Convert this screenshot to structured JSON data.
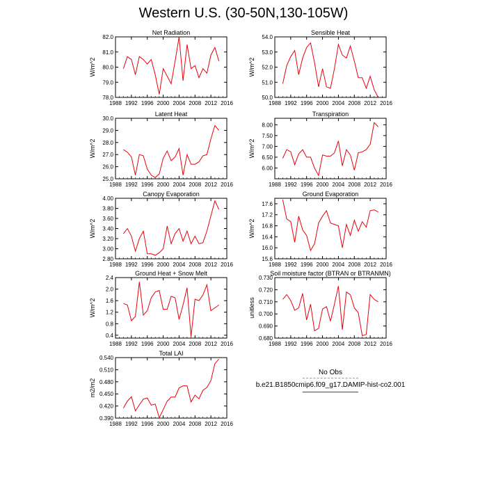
{
  "page_title": "Western U.S. (30-50N,130-105W)",
  "legend": {
    "obs_label": "No Obs",
    "model_label": "b.e21.B1850cmip6.f09_g17.DAMIP-hist-co2.001",
    "obs_color": "#9a9aa8",
    "model_color": "#e8000b"
  },
  "chart_data": [
    {
      "type": "line",
      "title": "Net Radiation",
      "ylabel": "W/m^2",
      "xlim": [
        1988,
        2016
      ],
      "xticks": [
        1988,
        1992,
        1996,
        2000,
        2004,
        2008,
        2012,
        2016
      ],
      "ylim": [
        78.0,
        82.0
      ],
      "yticks": [
        "78.0",
        "79.0",
        "80.0",
        "81.0",
        "82.0"
      ],
      "series": [
        {
          "color": "#e8000b",
          "x": [
            1990,
            1991,
            1992,
            1993,
            1994,
            1995,
            1996,
            1997,
            1998,
            1999,
            2000,
            2001,
            2002,
            2003,
            2004,
            2005,
            2006,
            2007,
            2008,
            2009,
            2010,
            2011,
            2012,
            2013,
            2014
          ],
          "values": [
            79.9,
            80.7,
            80.5,
            79.5,
            80.7,
            80.5,
            80.2,
            80.5,
            79.5,
            78.2,
            79.9,
            79.4,
            78.9,
            80.4,
            82.0,
            79.1,
            81.5,
            79.9,
            80.1,
            79.3,
            79.9,
            79.6,
            80.8,
            81.3,
            80.4
          ]
        }
      ]
    },
    {
      "type": "line",
      "title": "Sensible Heat",
      "ylabel": "W/m^2",
      "xlim": [
        1988,
        2016
      ],
      "xticks": [
        1988,
        1992,
        1996,
        2000,
        2004,
        2008,
        2012,
        2016
      ],
      "ylim": [
        50.0,
        54.0
      ],
      "yticks": [
        "50.0",
        "51.0",
        "52.0",
        "53.0",
        "54.0"
      ],
      "series": [
        {
          "color": "#e8000b",
          "x": [
            1990,
            1991,
            1992,
            1993,
            1994,
            1995,
            1996,
            1997,
            1998,
            1999,
            2000,
            2001,
            2002,
            2003,
            2004,
            2005,
            2006,
            2007,
            2008,
            2009,
            2010,
            2011,
            2012,
            2013,
            2014
          ],
          "values": [
            50.9,
            52.1,
            52.7,
            53.1,
            51.5,
            52.6,
            53.3,
            53.6,
            52.3,
            50.7,
            51.9,
            50.7,
            50.6,
            51.9,
            53.5,
            52.8,
            52.6,
            53.4,
            52.4,
            51.3,
            51.3,
            50.6,
            51.4,
            50.5,
            50.0
          ]
        }
      ]
    },
    {
      "type": "line",
      "title": "Latent Heat",
      "ylabel": "W/m^2",
      "xlim": [
        1988,
        2016
      ],
      "xticks": [
        1988,
        1992,
        1996,
        2000,
        2004,
        2008,
        2012,
        2016
      ],
      "ylim": [
        25.0,
        30.0
      ],
      "yticks": [
        "25.0",
        "26.0",
        "27.0",
        "28.0",
        "29.0",
        "30.0"
      ],
      "series": [
        {
          "color": "#e8000b",
          "x": [
            1990,
            1991,
            1992,
            1993,
            1994,
            1995,
            1996,
            1997,
            1998,
            1999,
            2000,
            2001,
            2002,
            2003,
            2004,
            2005,
            2006,
            2007,
            2008,
            2009,
            2010,
            2011,
            2012,
            2013,
            2014
          ],
          "values": [
            27.4,
            27.2,
            26.8,
            25.3,
            27.0,
            26.9,
            25.8,
            25.3,
            25.1,
            25.4,
            26.7,
            27.3,
            26.5,
            26.8,
            27.5,
            25.3,
            27.0,
            26.2,
            26.2,
            26.4,
            26.9,
            27.0,
            28.3,
            29.4,
            29.0
          ]
        }
      ]
    },
    {
      "type": "line",
      "title": "Transpiration",
      "ylabel": "W/m^2",
      "xlim": [
        1988,
        2016
      ],
      "xticks": [
        1988,
        1992,
        1996,
        2000,
        2004,
        2008,
        2012,
        2016
      ],
      "ylim": [
        5.5,
        8.3
      ],
      "yticks": [
        "6.00",
        "6.50",
        "7.00",
        "7.50",
        "8.00"
      ],
      "ytick_values": [
        6.0,
        6.5,
        7.0,
        7.5,
        8.0
      ],
      "series": [
        {
          "color": "#e8000b",
          "x": [
            1990,
            1991,
            1992,
            1993,
            1994,
            1995,
            1996,
            1997,
            1998,
            1999,
            2000,
            2001,
            2002,
            2003,
            2004,
            2005,
            2006,
            2007,
            2008,
            2009,
            2010,
            2011,
            2012,
            2013,
            2014
          ],
          "values": [
            6.45,
            6.85,
            6.75,
            6.15,
            6.65,
            6.85,
            6.5,
            6.5,
            6.0,
            5.65,
            6.6,
            6.55,
            6.55,
            6.7,
            7.25,
            6.1,
            6.85,
            6.6,
            5.9,
            6.7,
            6.75,
            6.85,
            7.1,
            8.1,
            7.9
          ]
        }
      ]
    },
    {
      "type": "line",
      "title": "Canopy Evaporation",
      "ylabel": "W/m^2",
      "xlim": [
        1988,
        2016
      ],
      "xticks": [
        1988,
        1992,
        1996,
        2000,
        2004,
        2008,
        2012,
        2016
      ],
      "ylim": [
        2.8,
        4.0
      ],
      "yticks": [
        "2.80",
        "3.00",
        "3.20",
        "3.40",
        "3.60",
        "3.80",
        "4.00"
      ],
      "series": [
        {
          "color": "#e8000b",
          "x": [
            1990,
            1991,
            1992,
            1993,
            1994,
            1995,
            1996,
            1997,
            1998,
            1999,
            2000,
            2001,
            2002,
            2003,
            2004,
            2005,
            2006,
            2007,
            2008,
            2009,
            2010,
            2011,
            2012,
            2013,
            2014
          ],
          "values": [
            3.3,
            3.4,
            3.25,
            2.95,
            3.2,
            3.35,
            2.9,
            2.9,
            2.87,
            2.92,
            3.0,
            3.45,
            3.1,
            3.3,
            3.4,
            3.15,
            3.35,
            3.1,
            3.25,
            3.1,
            3.12,
            3.35,
            3.65,
            3.95,
            3.78
          ]
        }
      ]
    },
    {
      "type": "line",
      "title": "Ground Evaporation",
      "ylabel": "W/m^2",
      "xlim": [
        1988,
        2016
      ],
      "xticks": [
        1988,
        1992,
        1996,
        2000,
        2004,
        2008,
        2012,
        2016
      ],
      "ylim": [
        15.6,
        17.8
      ],
      "yticks": [
        "15.6",
        "16.0",
        "16.4",
        "16.8",
        "17.2",
        "17.6"
      ],
      "ytick_values": [
        15.6,
        16.0,
        16.4,
        16.8,
        17.2,
        17.6
      ],
      "series": [
        {
          "color": "#e8000b",
          "x": [
            1990,
            1991,
            1992,
            1993,
            1994,
            1995,
            1996,
            1997,
            1998,
            1999,
            2000,
            2001,
            2002,
            2003,
            2004,
            2005,
            2006,
            2007,
            2008,
            2009,
            2010,
            2011,
            2012,
            2013,
            2014
          ],
          "values": [
            17.75,
            17.05,
            16.95,
            16.2,
            17.15,
            16.65,
            16.45,
            15.9,
            16.15,
            16.9,
            17.15,
            17.35,
            16.9,
            16.85,
            16.8,
            16.0,
            16.85,
            16.45,
            17.0,
            16.6,
            16.95,
            16.75,
            17.35,
            17.38,
            17.3
          ]
        }
      ]
    },
    {
      "type": "line",
      "title": "Ground Heat + Snow Melt",
      "ylabel": "W/m^2",
      "xlim": [
        1988,
        2016
      ],
      "xticks": [
        1988,
        1992,
        1996,
        2000,
        2004,
        2008,
        2012,
        2016
      ],
      "ylim": [
        0.3,
        2.4
      ],
      "yticks": [
        "0.4",
        "0.8",
        "1.2",
        "1.6",
        "2.0",
        "2.4"
      ],
      "ytick_values": [
        0.4,
        0.8,
        1.2,
        1.6,
        2.0,
        2.4
      ],
      "series": [
        {
          "color": "#e8000b",
          "x": [
            1990,
            1991,
            1992,
            1993,
            1994,
            1995,
            1996,
            1997,
            1998,
            1999,
            2000,
            2001,
            2002,
            2003,
            2004,
            2005,
            2006,
            2007,
            2008,
            2009,
            2010,
            2011,
            2012,
            2013,
            2014
          ],
          "values": [
            1.5,
            1.45,
            0.9,
            1.05,
            2.25,
            1.1,
            1.25,
            1.7,
            1.9,
            1.95,
            1.3,
            1.3,
            1.75,
            1.7,
            0.95,
            1.45,
            2.05,
            0.35,
            1.65,
            1.6,
            1.8,
            2.15,
            1.25,
            1.35,
            1.45
          ]
        }
      ]
    },
    {
      "type": "line",
      "title": "Soil moisture factor (BTRAN or BTRANMN)",
      "ylabel": "unitless",
      "xlim": [
        1988,
        2016
      ],
      "xticks": [
        1988,
        1992,
        1996,
        2000,
        2004,
        2008,
        2012,
        2016
      ],
      "ylim": [
        0.68,
        0.73
      ],
      "yticks": [
        "0.680",
        "0.690",
        "0.700",
        "0.710",
        "0.720",
        "0.730"
      ],
      "series": [
        {
          "color": "#e8000b",
          "x": [
            1990,
            1991,
            1992,
            1993,
            1994,
            1995,
            1996,
            1997,
            1998,
            1999,
            2000,
            2001,
            2002,
            2003,
            2004,
            2005,
            2006,
            2007,
            2008,
            2009,
            2010,
            2011,
            2012,
            2013,
            2014
          ],
          "values": [
            0.712,
            0.716,
            0.711,
            0.703,
            0.705,
            0.717,
            0.695,
            0.708,
            0.686,
            0.688,
            0.704,
            0.706,
            0.694,
            0.708,
            0.723,
            0.687,
            0.718,
            0.716,
            0.705,
            0.701,
            0.682,
            0.683,
            0.716,
            0.712,
            0.71
          ]
        }
      ]
    },
    {
      "type": "line",
      "title": "Total LAI",
      "ylabel": "m2/m2",
      "xlim": [
        1988,
        2016
      ],
      "xticks": [
        1988,
        1992,
        1996,
        2000,
        2004,
        2008,
        2012,
        2016
      ],
      "ylim": [
        0.39,
        0.54
      ],
      "yticks": [
        "0.390",
        "0.420",
        "0.450",
        "0.480",
        "0.510",
        "0.540"
      ],
      "series": [
        {
          "color": "#e8000b",
          "x": [
            1990,
            1991,
            1992,
            1993,
            1994,
            1995,
            1996,
            1997,
            1998,
            1999,
            2000,
            2001,
            2002,
            2003,
            2004,
            2005,
            2006,
            2007,
            2008,
            2009,
            2010,
            2011,
            2012,
            2013,
            2014
          ],
          "values": [
            0.415,
            0.432,
            0.443,
            0.408,
            0.423,
            0.437,
            0.44,
            0.422,
            0.425,
            0.391,
            0.411,
            0.432,
            0.442,
            0.442,
            0.465,
            0.47,
            0.47,
            0.43,
            0.447,
            0.438,
            0.459,
            0.466,
            0.483,
            0.525,
            0.536
          ]
        }
      ]
    }
  ]
}
